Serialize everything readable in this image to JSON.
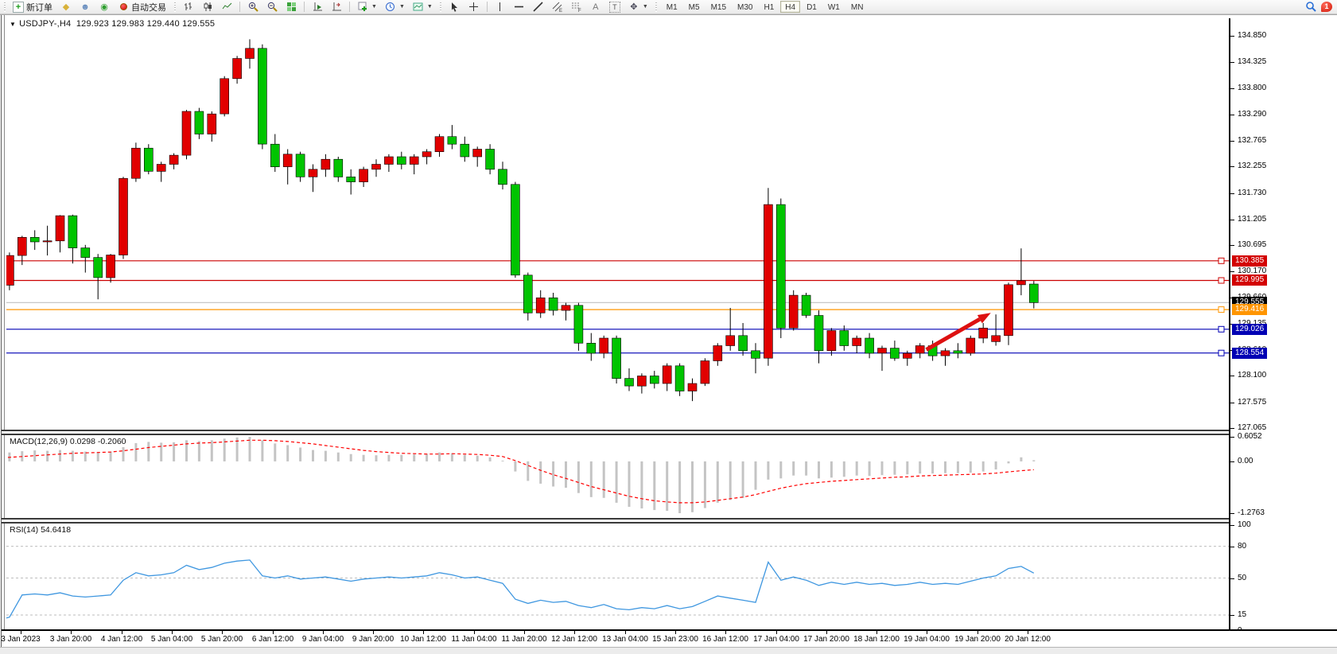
{
  "toolbar": {
    "new_order_label": "新订单",
    "auto_trading_label": "自动交易",
    "timeframes": [
      "M1",
      "M5",
      "M15",
      "M30",
      "H1",
      "H4",
      "D1",
      "W1",
      "MN"
    ],
    "active_timeframe": "H4",
    "notification_count": "1",
    "icons": [
      "new-order-icon",
      "gold-diamond-icon",
      "profile-icon",
      "signal-icon",
      "auto-trading-icon",
      "bar-chart-icon",
      "candlestick-chart-icon",
      "line-chart-icon",
      "zoom-in-icon",
      "zoom-out-icon",
      "tile-windows-icon",
      "auto-scroll-icon",
      "chart-shift-icon",
      "add-indicator-icon",
      "period-clock-icon",
      "template-icon",
      "cursor-icon",
      "crosshair-icon",
      "vertical-line-icon",
      "horizontal-line-icon",
      "trendline-icon",
      "equidistant-channel-icon",
      "fibonacci-icon",
      "text-icon",
      "text-label-icon",
      "arrows-icon",
      "search-icon",
      "notification-icon"
    ]
  },
  "chart_header": {
    "symbol_title": "USDJPY-,H4",
    "ohlc": "129.923 129.983 129.440 129.555"
  },
  "price_axis": {
    "ticks": [
      134.85,
      134.325,
      133.8,
      133.29,
      132.765,
      132.255,
      131.73,
      131.205,
      130.695,
      130.17,
      129.66,
      129.135,
      128.61,
      128.1,
      127.575,
      127.065
    ],
    "badges": [
      {
        "price": 130.385,
        "label": "130.385",
        "color": "#d30000"
      },
      {
        "price": 129.995,
        "label": "129.995",
        "color": "#d30000"
      },
      {
        "price": 129.555,
        "label": "129.555",
        "color": "#000000"
      },
      {
        "price": 129.416,
        "label": "129.416",
        "color": "#ff9500"
      },
      {
        "price": 129.026,
        "label": "129.026",
        "color": "#0000b4"
      },
      {
        "price": 128.554,
        "label": "128.554",
        "color": "#0000b4"
      }
    ]
  },
  "indicators": {
    "macd": {
      "text": "MACD(12,26,9) 0.0298 -0.2060",
      "ticks": [
        {
          "value": 0.6052,
          "label": "0.6052"
        },
        {
          "value": 0,
          "label": "0.00"
        },
        {
          "value": -1.2763,
          "label": "-1.2763"
        }
      ]
    },
    "rsi": {
      "text": "RSI(14) 54.6418",
      "ticks": [
        {
          "value": 100,
          "label": "100"
        },
        {
          "value": 80,
          "label": "80"
        },
        {
          "value": 50,
          "label": "50"
        },
        {
          "value": 15,
          "label": "15"
        },
        {
          "value": 0,
          "label": "0"
        }
      ]
    }
  },
  "time_axis": {
    "labels": [
      "3 Jan 2023",
      "3 Jan 20:00",
      "4 Jan 12:00",
      "5 Jan 04:00",
      "5 Jan 20:00",
      "6 Jan 12:00",
      "9 Jan 04:00",
      "9 Jan 20:00",
      "10 Jan 12:00",
      "11 Jan 04:00",
      "11 Jan 20:00",
      "12 Jan 12:00",
      "13 Jan 04:00",
      "15 Jan 23:00",
      "16 Jan 12:00",
      "17 Jan 04:00",
      "17 Jan 20:00",
      "18 Jan 12:00",
      "19 Jan 04:00",
      "19 Jan 20:00",
      "20 Jan 12:00"
    ]
  },
  "chart_data": [
    {
      "type": "candlestick",
      "title": "USDJPY-,H4",
      "ohlc_display": [
        129.923,
        129.983,
        129.44,
        129.555
      ],
      "ylim": [
        127.065,
        134.85
      ],
      "up_color": "#e10000",
      "down_color": "#00c400",
      "wick_color": "#000000",
      "hlines": [
        {
          "price": 130.385,
          "color": "#cc0000",
          "handle": true
        },
        {
          "price": 129.995,
          "color": "#cc0000",
          "handle": true
        },
        {
          "price": 129.555,
          "color": "#c0c0c0",
          "handle": false
        },
        {
          "price": 129.416,
          "color": "#ff9500",
          "handle": true
        },
        {
          "price": 129.026,
          "color": "#0000b4",
          "handle": true
        },
        {
          "price": 128.554,
          "color": "#0000b4",
          "handle": true
        }
      ],
      "arrow": {
        "from_bar": 73.5,
        "from_price": 128.62,
        "to_bar": 78.6,
        "to_price": 129.35,
        "color": "#dd1111"
      },
      "candles": [
        [
          129.95,
          130.5,
          129.85,
          130.45
        ],
        [
          129.9,
          130.55,
          129.8,
          130.49
        ],
        [
          130.49,
          130.88,
          130.3,
          130.85
        ],
        [
          130.85,
          130.99,
          130.6,
          130.76
        ],
        [
          130.76,
          131.08,
          130.49,
          130.78
        ],
        [
          130.78,
          131.29,
          130.55,
          131.28
        ],
        [
          131.28,
          131.3,
          130.33,
          130.64
        ],
        [
          130.64,
          130.7,
          130.15,
          130.45
        ],
        [
          130.45,
          130.52,
          129.62,
          130.05
        ],
        [
          130.05,
          130.52,
          129.95,
          130.5
        ],
        [
          130.5,
          132.05,
          130.42,
          132.02
        ],
        [
          132.02,
          132.73,
          131.95,
          132.62
        ],
        [
          132.62,
          132.7,
          132.1,
          132.16
        ],
        [
          132.16,
          132.35,
          131.95,
          132.3
        ],
        [
          132.3,
          132.52,
          132.2,
          132.48
        ],
        [
          132.48,
          133.38,
          132.4,
          133.35
        ],
        [
          133.35,
          133.42,
          132.8,
          132.9
        ],
        [
          132.9,
          133.35,
          132.75,
          133.3
        ],
        [
          133.3,
          134.05,
          133.25,
          134.0
        ],
        [
          134.0,
          134.45,
          133.9,
          134.4
        ],
        [
          134.4,
          134.78,
          134.2,
          134.6
        ],
        [
          134.6,
          134.68,
          132.6,
          132.7
        ],
        [
          132.7,
          132.9,
          132.15,
          132.25
        ],
        [
          132.25,
          132.6,
          131.9,
          132.5
        ],
        [
          132.5,
          132.55,
          131.95,
          132.05
        ],
        [
          132.05,
          132.3,
          131.75,
          132.2
        ],
        [
          132.2,
          132.5,
          132.05,
          132.4
        ],
        [
          132.4,
          132.45,
          131.95,
          132.05
        ],
        [
          132.05,
          132.2,
          131.7,
          131.95
        ],
        [
          131.95,
          132.25,
          131.85,
          132.2
        ],
        [
          132.2,
          132.4,
          132.05,
          132.3
        ],
        [
          132.3,
          132.5,
          132.15,
          132.45
        ],
        [
          132.45,
          132.55,
          132.2,
          132.3
        ],
        [
          132.3,
          132.5,
          132.1,
          132.45
        ],
        [
          132.45,
          132.6,
          132.3,
          132.55
        ],
        [
          132.55,
          132.9,
          132.45,
          132.85
        ],
        [
          132.85,
          133.08,
          132.6,
          132.7
        ],
        [
          132.7,
          132.85,
          132.35,
          132.45
        ],
        [
          132.45,
          132.65,
          132.25,
          132.6
        ],
        [
          132.6,
          132.7,
          132.1,
          132.2
        ],
        [
          132.2,
          132.35,
          131.8,
          131.9
        ],
        [
          131.9,
          131.95,
          130.05,
          130.1
        ],
        [
          130.1,
          130.15,
          129.2,
          129.35
        ],
        [
          129.35,
          129.8,
          129.25,
          129.65
        ],
        [
          129.65,
          129.75,
          129.3,
          129.4
        ],
        [
          129.4,
          129.55,
          129.2,
          129.5
        ],
        [
          129.5,
          129.55,
          128.6,
          128.75
        ],
        [
          128.75,
          128.95,
          128.4,
          128.55
        ],
        [
          128.55,
          128.9,
          128.45,
          128.85
        ],
        [
          128.85,
          128.9,
          127.95,
          128.05
        ],
        [
          128.05,
          128.25,
          127.8,
          127.9
        ],
        [
          127.9,
          128.15,
          127.75,
          128.1
        ],
        [
          128.1,
          128.2,
          127.85,
          127.95
        ],
        [
          127.95,
          128.35,
          127.8,
          128.3
        ],
        [
          128.3,
          128.35,
          127.7,
          127.8
        ],
        [
          127.8,
          128.05,
          127.6,
          127.95
        ],
        [
          127.95,
          128.45,
          127.9,
          128.4
        ],
        [
          128.4,
          128.75,
          128.3,
          128.7
        ],
        [
          128.7,
          129.45,
          128.6,
          128.9
        ],
        [
          128.9,
          129.15,
          128.5,
          128.6
        ],
        [
          128.6,
          128.75,
          128.15,
          128.45
        ],
        [
          128.45,
          131.83,
          128.3,
          131.5
        ],
        [
          131.5,
          131.62,
          128.85,
          129.05
        ],
        [
          129.05,
          129.8,
          129.0,
          129.7
        ],
        [
          129.7,
          129.75,
          129.25,
          129.3
        ],
        [
          129.3,
          129.4,
          128.35,
          128.6
        ],
        [
          128.6,
          129.05,
          128.5,
          129.0
        ],
        [
          129.0,
          129.1,
          128.6,
          128.7
        ],
        [
          128.7,
          128.9,
          128.55,
          128.85
        ],
        [
          128.85,
          128.95,
          128.45,
          128.55
        ],
        [
          128.55,
          128.7,
          128.2,
          128.65
        ],
        [
          128.65,
          128.8,
          128.4,
          128.45
        ],
        [
          128.45,
          128.6,
          128.3,
          128.55
        ],
        [
          128.55,
          128.75,
          128.45,
          128.7
        ],
        [
          128.7,
          128.8,
          128.4,
          128.5
        ],
        [
          128.5,
          128.65,
          128.3,
          128.6
        ],
        [
          128.6,
          128.75,
          128.45,
          128.55
        ],
        [
          128.55,
          128.9,
          128.5,
          128.85
        ],
        [
          128.85,
          129.15,
          128.75,
          129.05
        ],
        [
          128.78,
          129.32,
          128.7,
          128.9
        ],
        [
          128.9,
          129.95,
          128.71,
          129.91
        ],
        [
          129.91,
          130.63,
          129.7,
          129.99
        ],
        [
          129.923,
          129.983,
          129.44,
          129.555
        ]
      ]
    },
    {
      "type": "bar",
      "name": "MACD(12,26,9)",
      "ylim": [
        -1.2763,
        0.6052
      ],
      "bar_color": "#c4c4c4",
      "signal_color": "#ff0000",
      "values": [
        0.2,
        0.22,
        0.25,
        0.27,
        0.26,
        0.28,
        0.26,
        0.24,
        0.22,
        0.24,
        0.35,
        0.45,
        0.48,
        0.46,
        0.47,
        0.52,
        0.5,
        0.52,
        0.56,
        0.59,
        0.605,
        0.52,
        0.44,
        0.4,
        0.34,
        0.28,
        0.26,
        0.22,
        0.18,
        0.16,
        0.15,
        0.16,
        0.16,
        0.17,
        0.18,
        0.22,
        0.2,
        0.16,
        0.14,
        0.1,
        0.02,
        -0.25,
        -0.48,
        -0.55,
        -0.62,
        -0.65,
        -0.78,
        -0.88,
        -0.9,
        -1.02,
        -1.12,
        -1.16,
        -1.2,
        -1.22,
        -1.2763,
        -1.25,
        -1.15,
        -1.02,
        -0.95,
        -0.9,
        -0.7,
        -0.45,
        -0.42,
        -0.35,
        -0.35,
        -0.42,
        -0.4,
        -0.38,
        -0.35,
        -0.36,
        -0.34,
        -0.33,
        -0.32,
        -0.3,
        -0.3,
        -0.29,
        -0.29,
        -0.28,
        -0.25,
        -0.2,
        -0.05,
        0.1,
        0.0298
      ],
      "signal": [
        0.08,
        0.1,
        0.12,
        0.14,
        0.16,
        0.18,
        0.2,
        0.21,
        0.22,
        0.23,
        0.26,
        0.3,
        0.34,
        0.37,
        0.4,
        0.43,
        0.45,
        0.46,
        0.48,
        0.5,
        0.52,
        0.52,
        0.51,
        0.49,
        0.46,
        0.43,
        0.39,
        0.35,
        0.31,
        0.27,
        0.24,
        0.22,
        0.2,
        0.19,
        0.18,
        0.18,
        0.19,
        0.18,
        0.17,
        0.15,
        0.12,
        0.02,
        -0.1,
        -0.22,
        -0.33,
        -0.42,
        -0.52,
        -0.62,
        -0.7,
        -0.78,
        -0.86,
        -0.92,
        -0.97,
        -1.0,
        -1.02,
        -1.02,
        -1.0,
        -0.96,
        -0.92,
        -0.88,
        -0.82,
        -0.74,
        -0.66,
        -0.6,
        -0.55,
        -0.52,
        -0.49,
        -0.47,
        -0.45,
        -0.43,
        -0.41,
        -0.39,
        -0.38,
        -0.36,
        -0.35,
        -0.34,
        -0.33,
        -0.32,
        -0.31,
        -0.29,
        -0.26,
        -0.23,
        -0.206
      ]
    },
    {
      "type": "line",
      "name": "RSI(14)",
      "ylim": [
        0,
        100
      ],
      "levels": [
        80,
        50,
        15
      ],
      "line_color": "#3f97e0",
      "level_color": "#bdbdbd",
      "values": [
        10,
        13,
        34,
        35,
        34,
        36,
        33,
        32,
        33,
        34,
        48,
        55,
        52,
        53,
        55,
        62,
        58,
        60,
        64,
        66,
        67,
        52,
        50,
        52,
        49,
        50,
        51,
        49,
        47,
        49,
        50,
        51,
        50,
        51,
        52,
        55,
        53,
        50,
        51,
        48,
        45,
        30,
        26,
        29,
        27,
        28,
        24,
        22,
        25,
        21,
        20,
        22,
        21,
        24,
        21,
        23,
        28,
        33,
        31,
        29,
        27,
        65,
        48,
        51,
        48,
        43,
        46,
        44,
        46,
        44,
        45,
        43,
        44,
        46,
        44,
        45,
        44,
        47,
        50,
        52,
        59,
        61,
        54.6418
      ]
    }
  ]
}
